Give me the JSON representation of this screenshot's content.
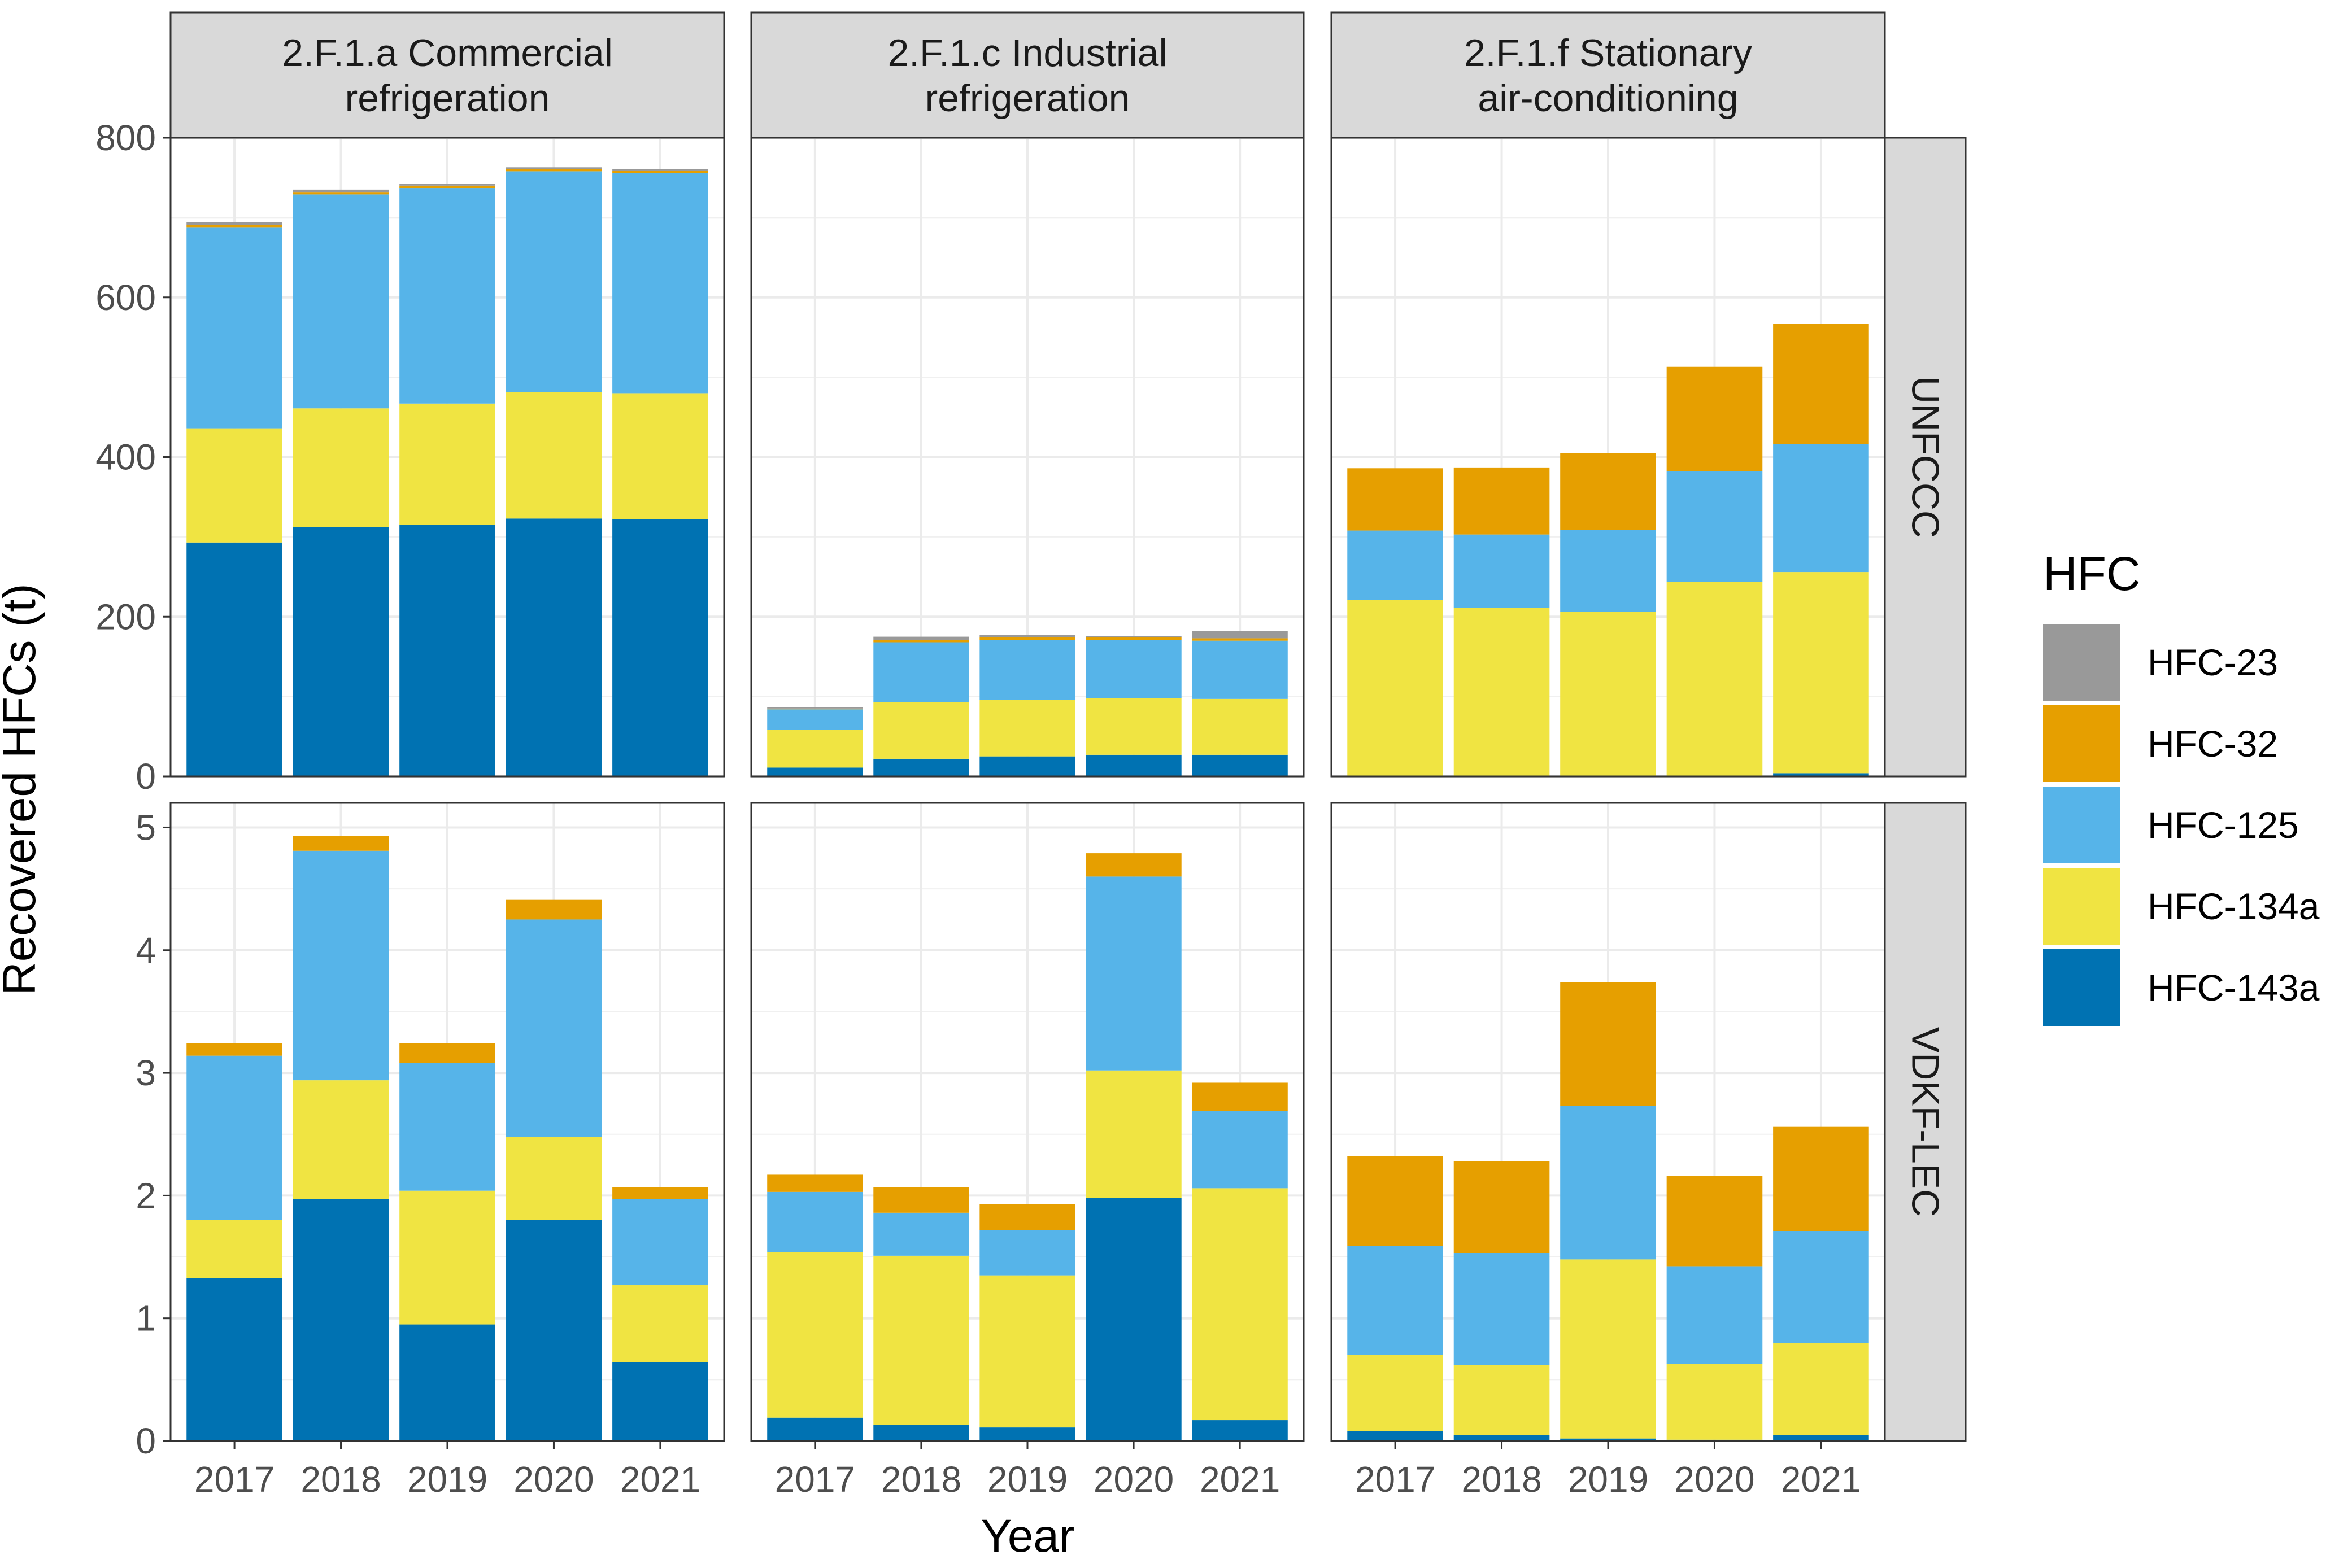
{
  "chart_data": {
    "type": "bar",
    "stacked": true,
    "xlabel": "Year",
    "ylabel": "Recovered HFCs (t)",
    "categories": [
      "2017",
      "2018",
      "2019",
      "2020",
      "2021"
    ],
    "facet_columns": [
      "2.F.1.a Commercial\nrefrigeration",
      "2.F.1.c Industrial\nrefrigeration",
      "2.F.1.f Stationary\nair-conditioning"
    ],
    "facet_rows": [
      "UNFCCC",
      "VDKF-LEC"
    ],
    "stack_order": [
      "HFC-143a",
      "HFC-134a",
      "HFC-125",
      "HFC-32",
      "HFC-23"
    ],
    "legend": {
      "title": "HFC",
      "position": "right",
      "entries": [
        {
          "label": "HFC-23",
          "color": "#999999"
        },
        {
          "label": "HFC-32",
          "color": "#E69F00"
        },
        {
          "label": "HFC-125",
          "color": "#56B4E9"
        },
        {
          "label": "HFC-134a",
          "color": "#F0E442"
        },
        {
          "label": "HFC-143a",
          "color": "#0072B2"
        }
      ]
    },
    "rows": [
      {
        "name": "UNFCCC",
        "ylim": [
          0,
          800
        ],
        "ticks": [
          0,
          200,
          400,
          600,
          800
        ],
        "tick_labels": [
          "0",
          "200",
          "400",
          "600",
          "800"
        ],
        "panels": [
          {
            "series": [
              {
                "name": "HFC-143a",
                "values": [
                  293,
                  312,
                  315,
                  323,
                  322
                ]
              },
              {
                "name": "HFC-134a",
                "values": [
                  143,
                  149,
                  152,
                  158,
                  158
                ]
              },
              {
                "name": "HFC-125",
                "values": [
                  252,
                  268,
                  270,
                  277,
                  276
                ]
              },
              {
                "name": "HFC-32",
                "values": [
                  3,
                  3,
                  3,
                  3,
                  3
                ]
              },
              {
                "name": "HFC-23",
                "values": [
                  3,
                  3,
                  2,
                  2,
                  2
                ]
              }
            ]
          },
          {
            "series": [
              {
                "name": "HFC-143a",
                "values": [
                  11,
                  22,
                  25,
                  27,
                  27
                ]
              },
              {
                "name": "HFC-134a",
                "values": [
                  47,
                  71,
                  71,
                  71,
                  70
                ]
              },
              {
                "name": "HFC-125",
                "values": [
                  26,
                  75,
                  75,
                  73,
                  73
                ]
              },
              {
                "name": "HFC-32",
                "values": [
                  1,
                  3,
                  3,
                  3,
                  3
                ]
              },
              {
                "name": "HFC-23",
                "values": [
                  2,
                  4,
                  3,
                  2,
                  9
                ]
              }
            ]
          },
          {
            "series": [
              {
                "name": "HFC-143a",
                "values": [
                  1,
                  1,
                  1,
                  1,
                  4
                ]
              },
              {
                "name": "HFC-134a",
                "values": [
                  220,
                  210,
                  205,
                  243,
                  252
                ]
              },
              {
                "name": "HFC-125",
                "values": [
                  87,
                  92,
                  103,
                  138,
                  160
                ]
              },
              {
                "name": "HFC-32",
                "values": [
                  78,
                  84,
                  96,
                  131,
                  151
                ]
              },
              {
                "name": "HFC-23",
                "values": [
                  0,
                  0,
                  0,
                  0,
                  0
                ]
              }
            ]
          }
        ]
      },
      {
        "name": "VDKF-LEC",
        "ylim": [
          0,
          5.2
        ],
        "ticks": [
          0,
          1,
          2,
          3,
          4,
          5
        ],
        "tick_labels": [
          "0",
          "1",
          "2",
          "3",
          "4",
          "5"
        ],
        "panels": [
          {
            "series": [
              {
                "name": "HFC-143a",
                "values": [
                  1.33,
                  1.97,
                  0.95,
                  1.8,
                  0.64
                ]
              },
              {
                "name": "HFC-134a",
                "values": [
                  0.47,
                  0.97,
                  1.09,
                  0.68,
                  0.63
                ]
              },
              {
                "name": "HFC-125",
                "values": [
                  1.34,
                  1.87,
                  1.04,
                  1.77,
                  0.7
                ]
              },
              {
                "name": "HFC-32",
                "values": [
                  0.1,
                  0.12,
                  0.16,
                  0.16,
                  0.1
                ]
              },
              {
                "name": "HFC-23",
                "values": [
                  0,
                  0,
                  0,
                  0,
                  0
                ]
              }
            ]
          },
          {
            "series": [
              {
                "name": "HFC-143a",
                "values": [
                  0.19,
                  0.13,
                  0.11,
                  1.98,
                  0.17
                ]
              },
              {
                "name": "HFC-134a",
                "values": [
                  1.35,
                  1.38,
                  1.24,
                  1.04,
                  1.89
                ]
              },
              {
                "name": "HFC-125",
                "values": [
                  0.49,
                  0.35,
                  0.37,
                  1.58,
                  0.63
                ]
              },
              {
                "name": "HFC-32",
                "values": [
                  0.14,
                  0.21,
                  0.21,
                  0.19,
                  0.23
                ]
              },
              {
                "name": "HFC-23",
                "values": [
                  0,
                  0,
                  0,
                  0,
                  0
                ]
              }
            ]
          },
          {
            "series": [
              {
                "name": "HFC-143a",
                "values": [
                  0.08,
                  0.05,
                  0.02,
                  0.01,
                  0.05
                ]
              },
              {
                "name": "HFC-134a",
                "values": [
                  0.62,
                  0.57,
                  1.46,
                  0.62,
                  0.75
                ]
              },
              {
                "name": "HFC-125",
                "values": [
                  0.89,
                  0.91,
                  1.25,
                  0.79,
                  0.91
                ]
              },
              {
                "name": "HFC-32",
                "values": [
                  0.73,
                  0.75,
                  1.01,
                  0.74,
                  0.85
                ]
              },
              {
                "name": "HFC-23",
                "values": [
                  0,
                  0,
                  0,
                  0,
                  0
                ]
              }
            ]
          }
        ]
      }
    ]
  }
}
